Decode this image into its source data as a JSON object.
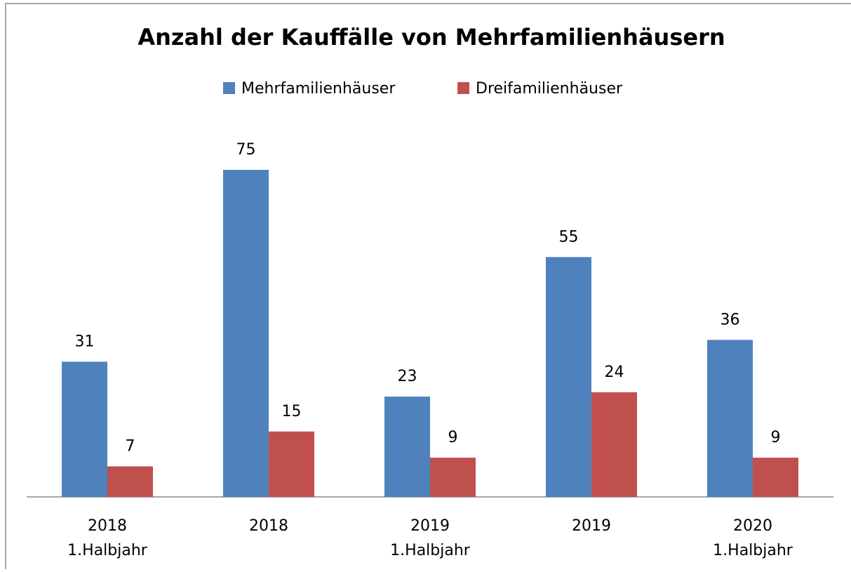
{
  "chart_data": {
    "type": "bar",
    "title": "Anzahl der Kauffälle von Mehrfamilienhäusern",
    "categories": [
      [
        "2018",
        "1.Halbjahr"
      ],
      [
        "2018"
      ],
      [
        "2019",
        "1.Halbjahr"
      ],
      [
        "2019"
      ],
      [
        "2020",
        "1.Halbjahr"
      ]
    ],
    "series": [
      {
        "name": "Mehrfamilienhäuser",
        "color": "#4f81bd",
        "values": [
          31,
          75,
          23,
          55,
          36
        ]
      },
      {
        "name": "Dreifamilienhäuser",
        "color": "#c0504d",
        "values": [
          7,
          15,
          9,
          24,
          9
        ]
      }
    ],
    "legend": "top"
  }
}
